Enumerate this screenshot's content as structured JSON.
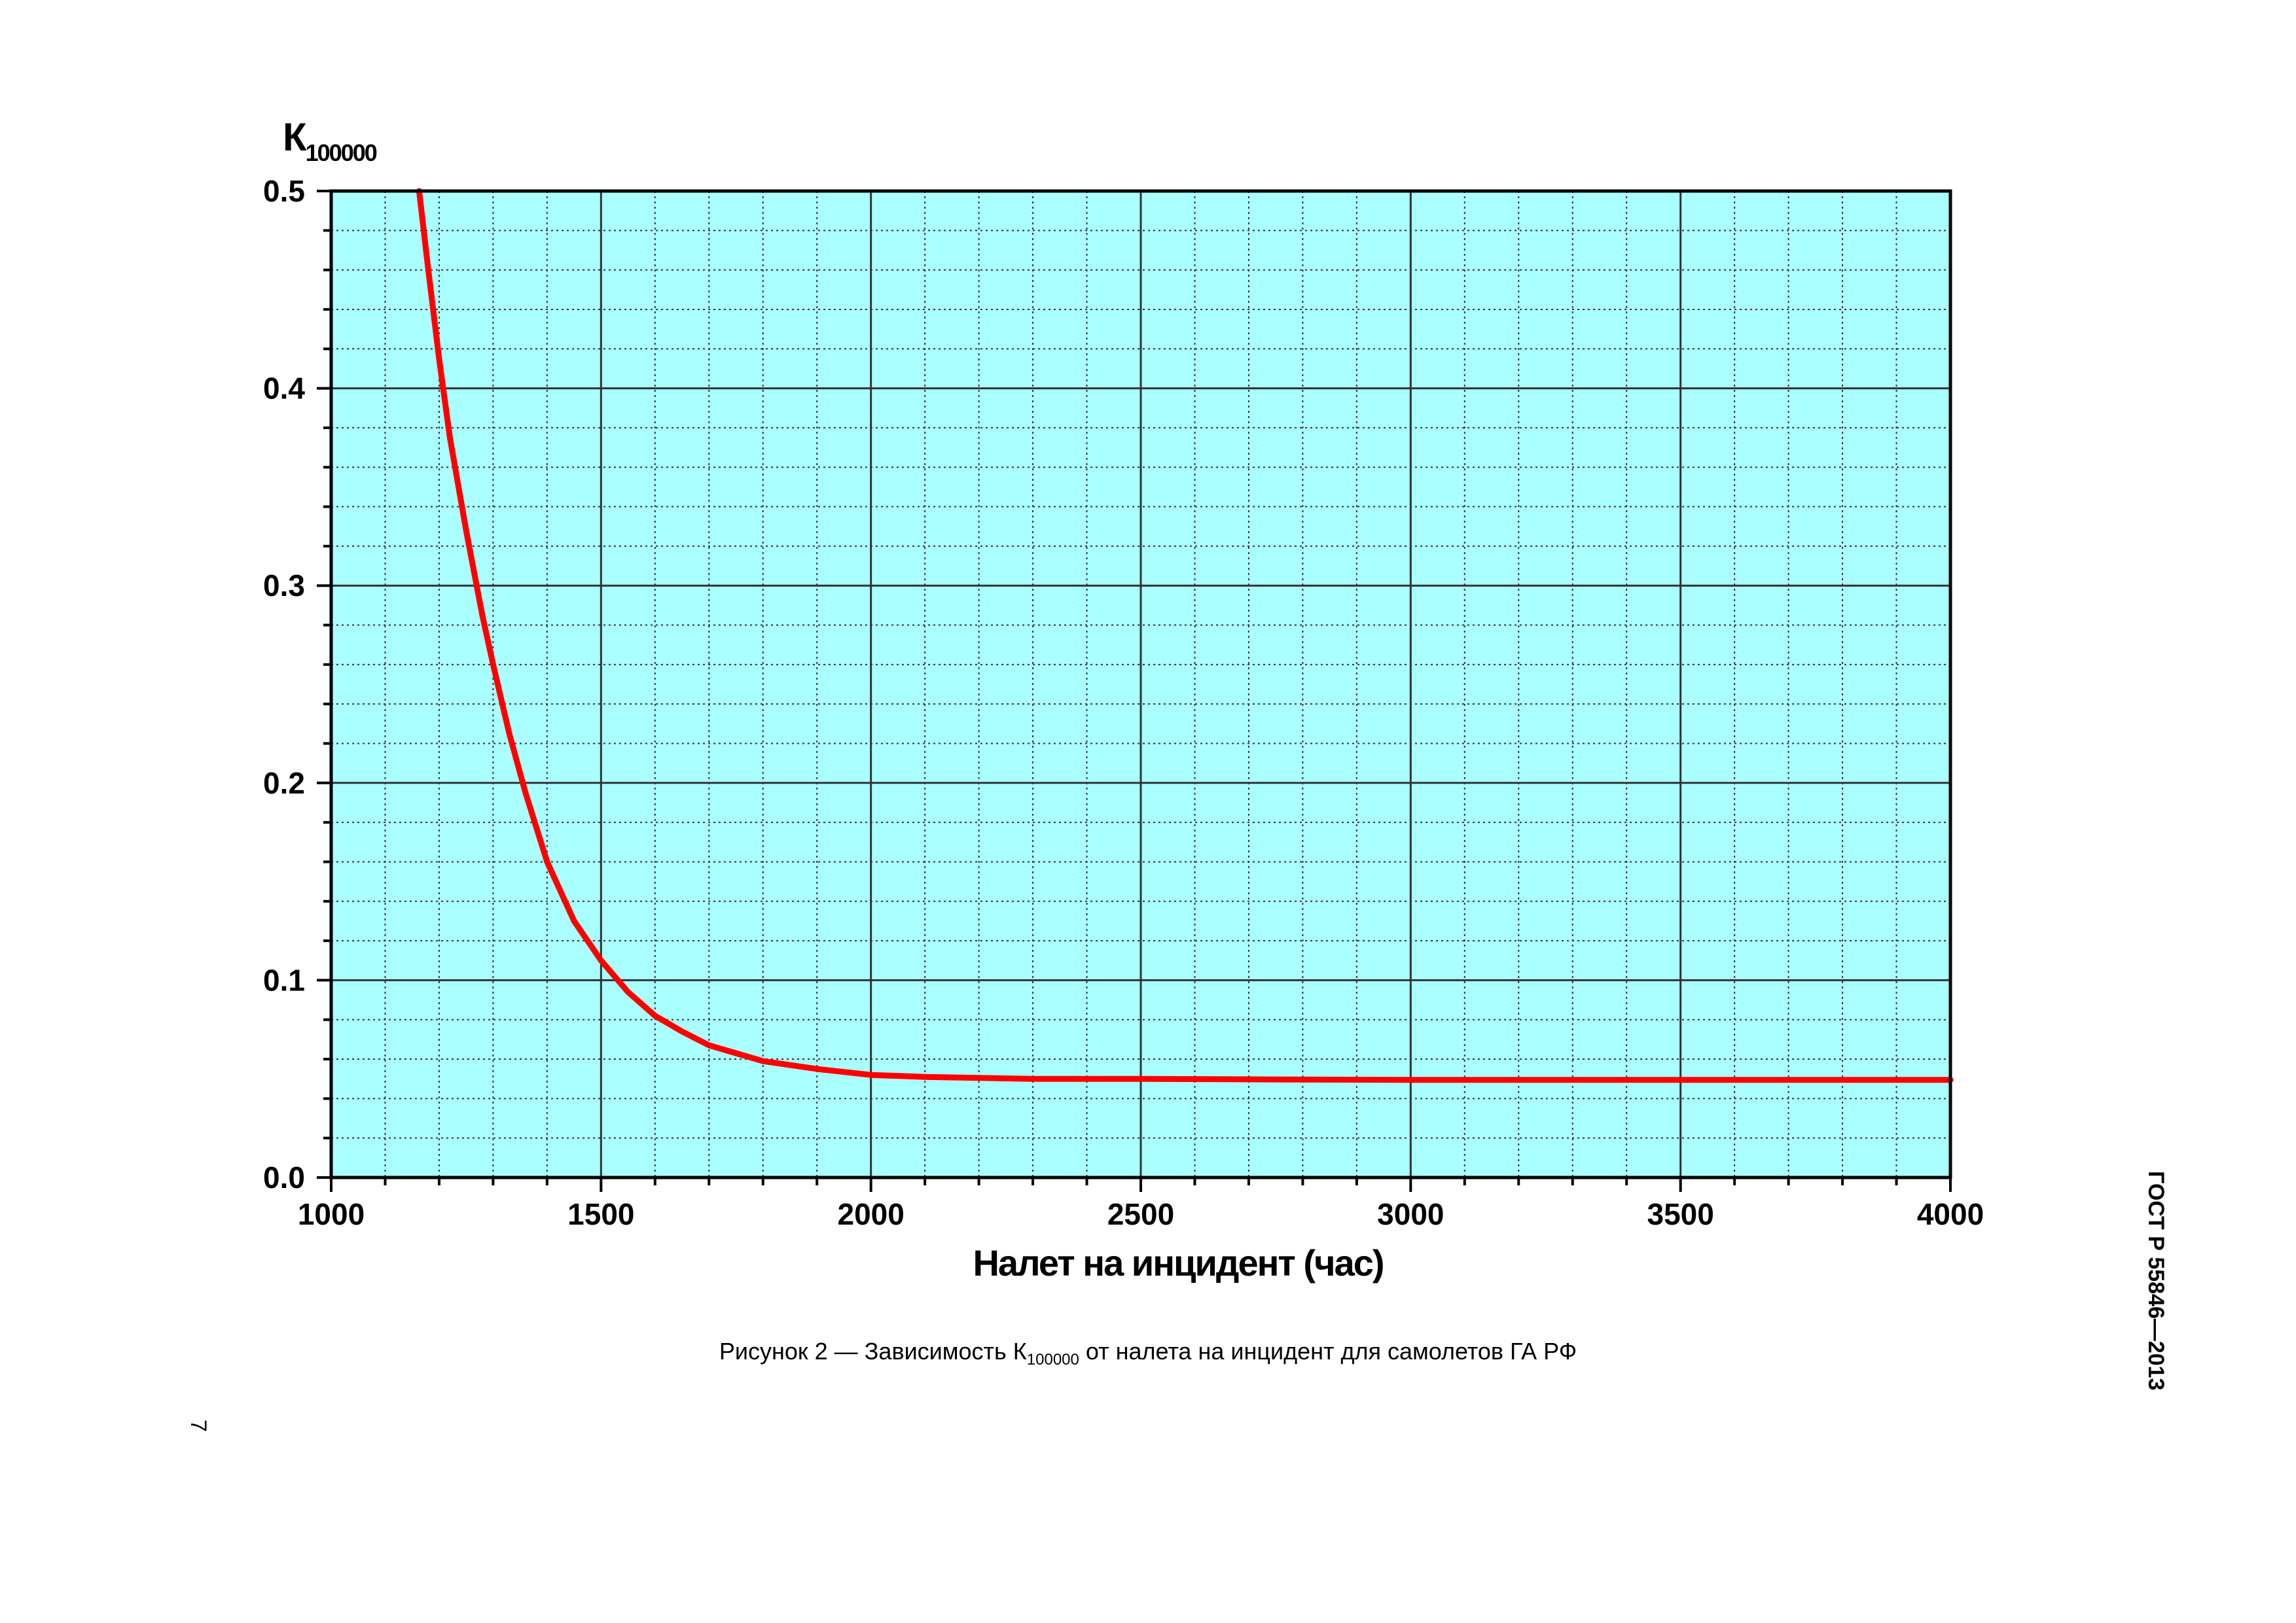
{
  "page": {
    "caption_prefix": "Рисунок 2 — Зависимость К",
    "caption_sub": "100000",
    "caption_suffix": " от налета на инцидент для самолетов ГА РФ",
    "standard_id": "ГОСТ Р 55846—2013",
    "page_number": "7"
  },
  "colors": {
    "plot_background": "#aaffff",
    "curve": "#ff0000",
    "grid_major": "#333333",
    "grid_minor": "#333333"
  },
  "chart_data": {
    "type": "line",
    "title": "",
    "ylabel": "К",
    "ylabel_subscript": "100000",
    "xlabel": "Налет на инцидент (час)",
    "xlim": [
      1000,
      4000
    ],
    "ylim": [
      0.0,
      0.5
    ],
    "x_ticks": [
      "1000",
      "1500",
      "2000",
      "2500",
      "3000",
      "3500",
      "4000"
    ],
    "y_ticks": [
      "0.0",
      "0.1",
      "0.2",
      "0.3",
      "0.4",
      "0.5"
    ],
    "grid": true,
    "legend": "none",
    "series": [
      {
        "x": [
          1163,
          1180,
          1200,
          1220,
          1250,
          1280,
          1300,
          1330,
          1360,
          1400,
          1450,
          1500,
          1550,
          1600,
          1650,
          1700,
          1750,
          1800,
          1900,
          2000,
          2100,
          2200,
          2300,
          2500,
          2750,
          3000,
          3500,
          4000
        ],
        "y": [
          0.5,
          0.46,
          0.415,
          0.375,
          0.328,
          0.285,
          0.26,
          0.225,
          0.195,
          0.16,
          0.13,
          0.11,
          0.094,
          0.082,
          0.074,
          0.067,
          0.063,
          0.059,
          0.055,
          0.052,
          0.051,
          0.0505,
          0.05,
          0.05,
          0.0497,
          0.0495,
          0.0495,
          0.0495
        ]
      }
    ]
  }
}
